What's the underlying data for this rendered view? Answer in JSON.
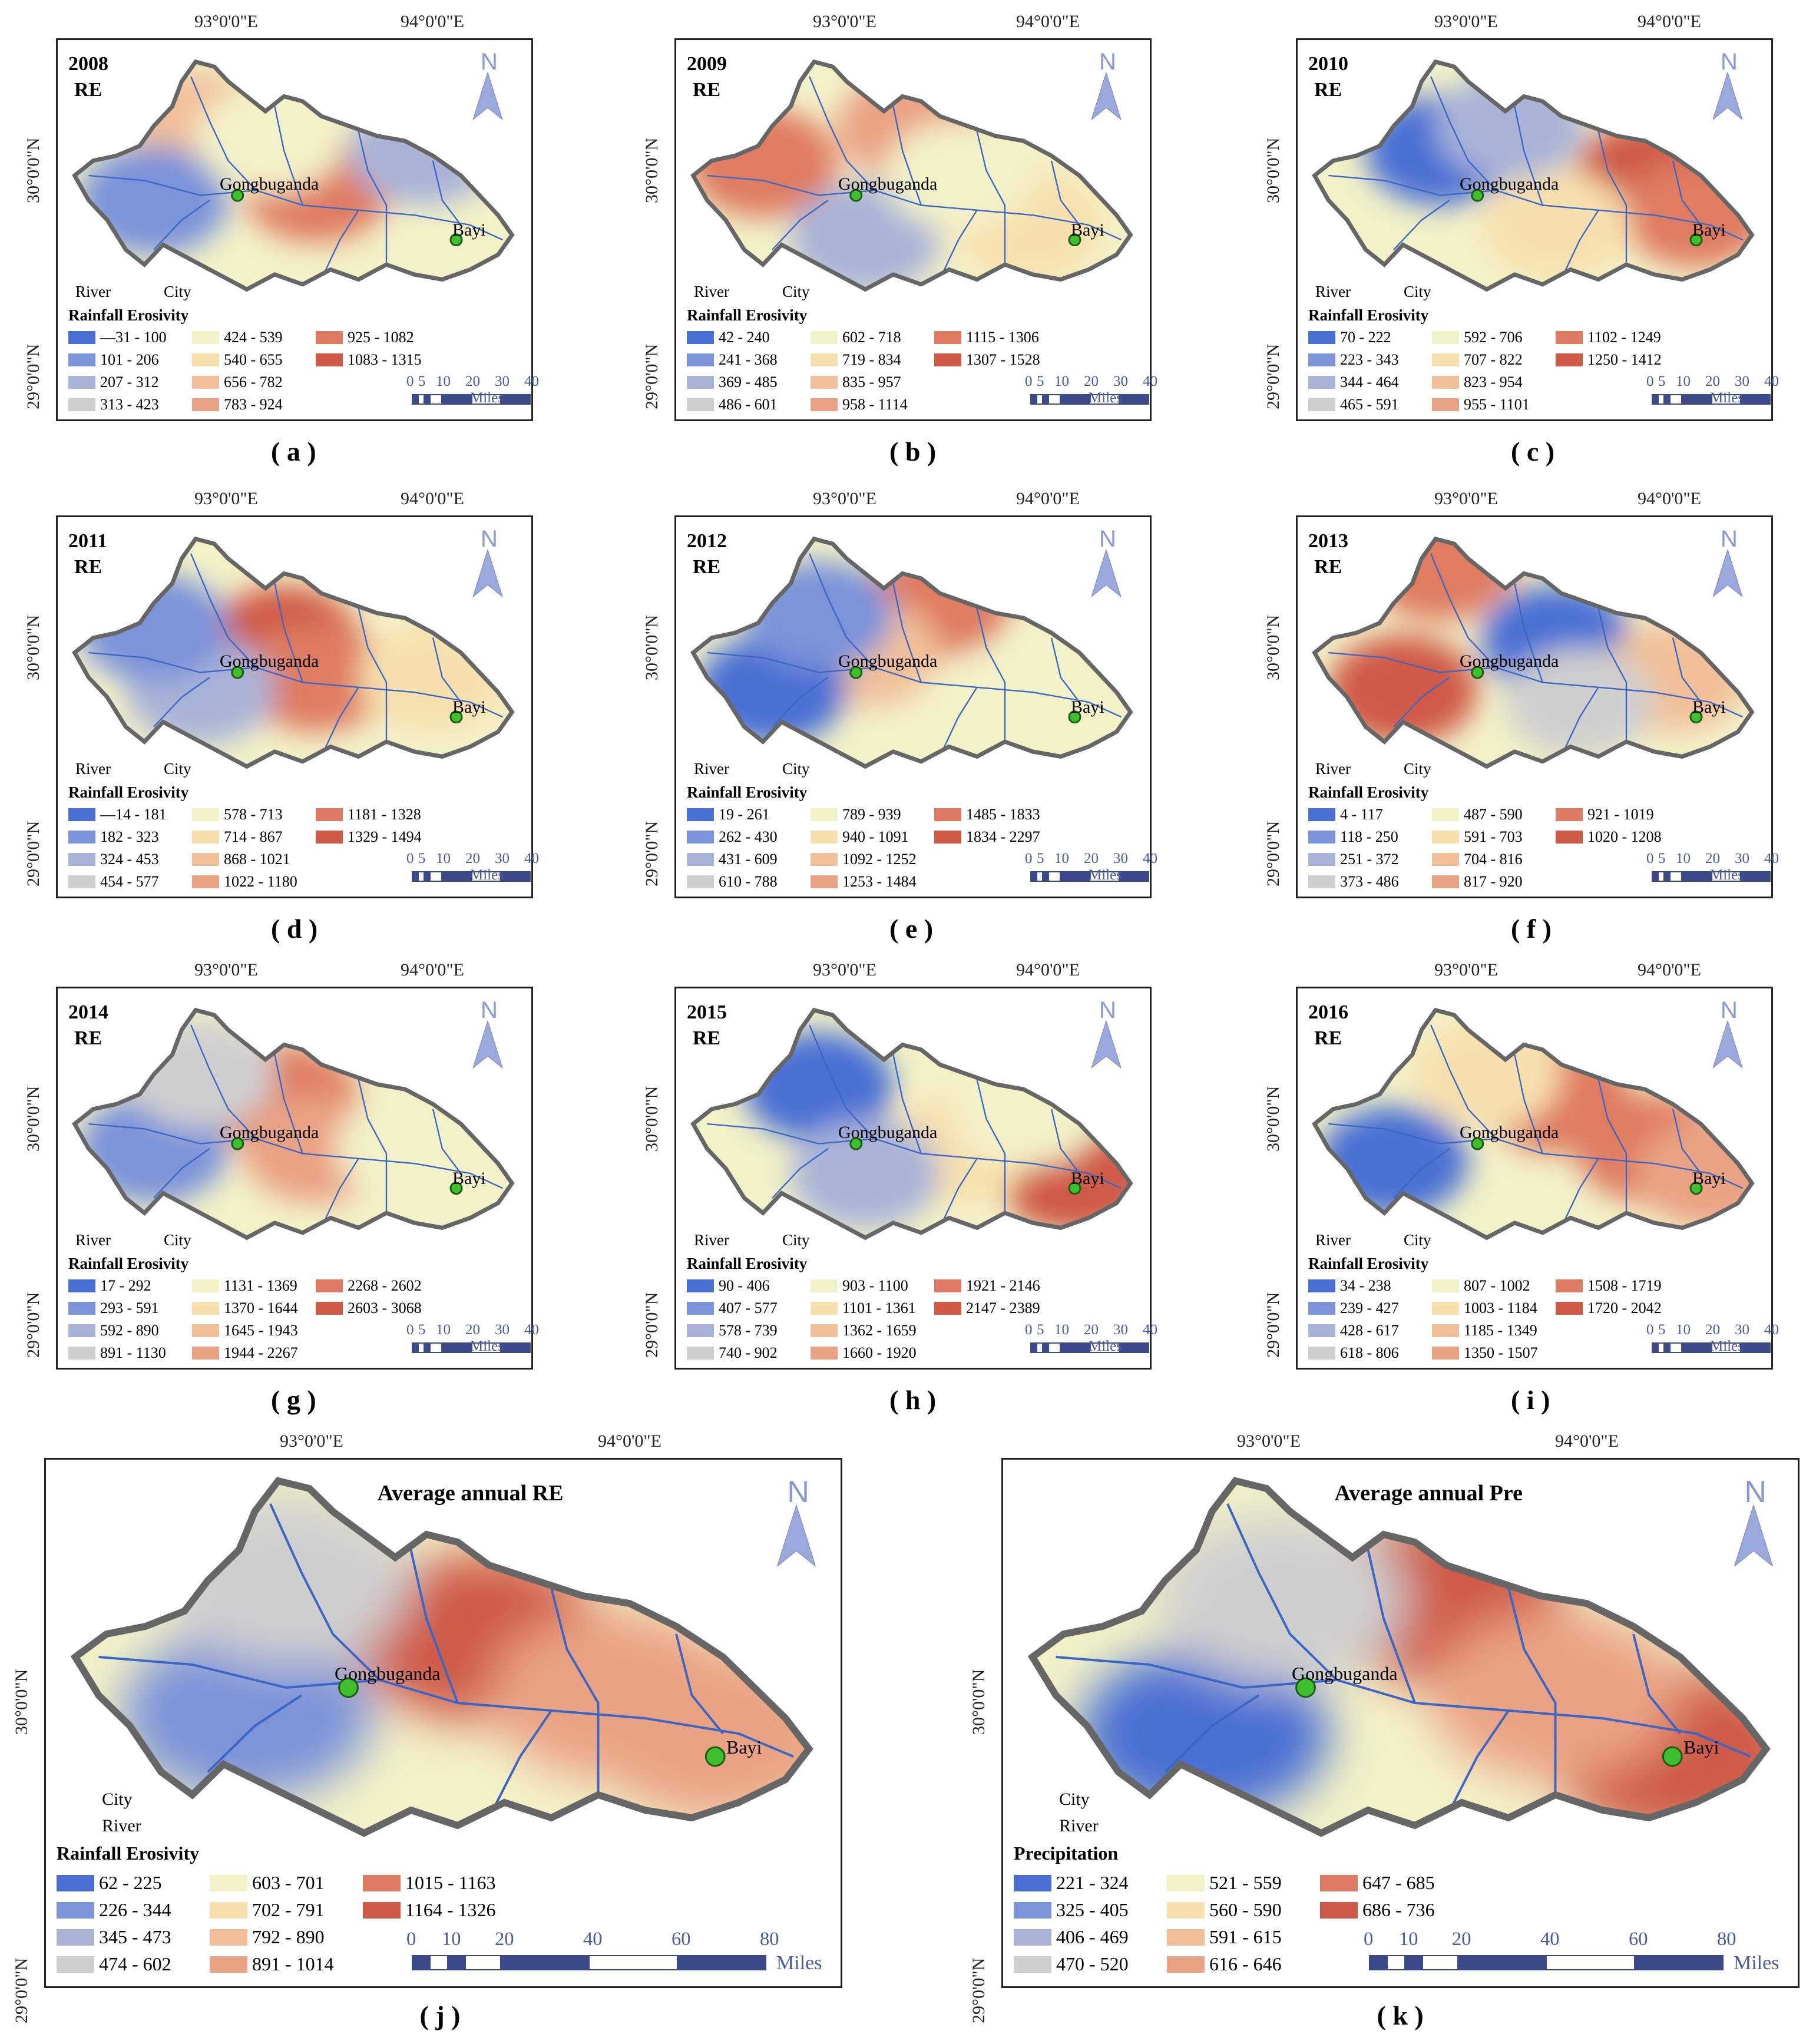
{
  "coords": {
    "lon1": "93°0'0\"E",
    "lon2": "94°0'0\"E",
    "lat1": "30°0'0\"N",
    "lat2": "29°0'0\"N"
  },
  "common": {
    "river": "River",
    "city": "City",
    "rainfall_erosivity": "Rainfall Erosivity",
    "precipitation": "Precipitation",
    "miles": "Miles",
    "north": "N",
    "re": "RE",
    "cities": {
      "gongbuganda": "Gongbuganda",
      "bayi": "Bayi"
    }
  },
  "colors": [
    "#4a6fd4",
    "#7b93d9",
    "#a9b3d8",
    "#cfcfcf",
    "#f3f1c7",
    "#f7e0ae",
    "#f1c09a",
    "#eaa284",
    "#df7b62",
    "#cf5a47"
  ],
  "panels": [
    {
      "caption": "( a )",
      "year": "2008",
      "legend": [
        "—31 - 100",
        "101 - 206",
        "207 - 312",
        "313 - 423",
        "424 - 539",
        "540 - 655",
        "656 - 782",
        "783 - 924",
        "925 - 1082",
        "1083 - 1315"
      ],
      "scale": [
        "0",
        "5",
        "10",
        "20",
        "30",
        "40"
      ]
    },
    {
      "caption": "( b )",
      "year": "2009",
      "legend": [
        "42 - 240",
        "241 - 368",
        "369 - 485",
        "486 - 601",
        "602 - 718",
        "719 - 834",
        "835 - 957",
        "958 - 1114",
        "1115 - 1306",
        "1307 - 1528"
      ],
      "scale": [
        "0",
        "5",
        "10",
        "20",
        "30",
        "40"
      ]
    },
    {
      "caption": "( c )",
      "year": "2010",
      "legend": [
        "70 - 222",
        "223 - 343",
        "344 - 464",
        "465 - 591",
        "592 - 706",
        "707 - 822",
        "823 - 954",
        "955 - 1101",
        "1102 - 1249",
        "1250 - 1412"
      ],
      "scale": [
        "0",
        "5",
        "10",
        "20",
        "30",
        "40"
      ]
    },
    {
      "caption": "( d )",
      "year": "2011",
      "legend": [
        "—14 - 181",
        "182 - 323",
        "324 - 453",
        "454 - 577",
        "578 - 713",
        "714 - 867",
        "868 - 1021",
        "1022 - 1180",
        "1181 - 1328",
        "1329 - 1494"
      ],
      "scale": [
        "0",
        "5",
        "10",
        "20",
        "30",
        "40"
      ]
    },
    {
      "caption": "( e )",
      "year": "2012",
      "legend": [
        "19 - 261",
        "262 - 430",
        "431 - 609",
        "610 - 788",
        "789 - 939",
        "940 - 1091",
        "1092 - 1252",
        "1253 - 1484",
        "1485 - 1833",
        "1834 - 2297"
      ],
      "scale": [
        "0",
        "5",
        "10",
        "20",
        "30",
        "40"
      ]
    },
    {
      "caption": "( f )",
      "year": "2013",
      "legend": [
        "4 - 117",
        "118 - 250",
        "251 - 372",
        "373 - 486",
        "487 - 590",
        "591 - 703",
        "704 - 816",
        "817 - 920",
        "921 - 1019",
        "1020 - 1208"
      ],
      "scale": [
        "0",
        "5",
        "10",
        "20",
        "30",
        "40"
      ]
    },
    {
      "caption": "( g )",
      "year": "2014",
      "legend": [
        "17 - 292",
        "293 - 591",
        "592 - 890",
        "891 - 1130",
        "1131 - 1369",
        "1370 - 1644",
        "1645 - 1943",
        "1944 - 2267",
        "2268 - 2602",
        "2603 - 3068"
      ],
      "scale": [
        "0",
        "5",
        "10",
        "20",
        "30",
        "40"
      ]
    },
    {
      "caption": "( h )",
      "year": "2015",
      "legend": [
        "90 - 406",
        "407 - 577",
        "578 - 739",
        "740 - 902",
        "903 - 1100",
        "1101 - 1361",
        "1362 - 1659",
        "1660 - 1920",
        "1921 - 2146",
        "2147 - 2389"
      ],
      "scale": [
        "0",
        "5",
        "10",
        "20",
        "30",
        "40"
      ]
    },
    {
      "caption": "( i )",
      "year": "2016",
      "legend": [
        "34 - 238",
        "239 - 427",
        "428 - 617",
        "618 - 806",
        "807 - 1002",
        "1003 - 1184",
        "1185 - 1349",
        "1350 - 1507",
        "1508 - 1719",
        "1720 - 2042"
      ],
      "scale": [
        "0",
        "5",
        "10",
        "20",
        "30",
        "40"
      ]
    }
  ],
  "big": [
    {
      "caption": "( j )",
      "title": "Average annual RE",
      "legend_title": "Rainfall Erosivity",
      "legend": [
        "62 - 225",
        "226 - 344",
        "345 - 473",
        "474 - 602",
        "603 - 701",
        "702 - 791",
        "792 - 890",
        "891 - 1014",
        "1015 - 1163",
        "1164 - 1326"
      ],
      "scale": [
        "0",
        "10",
        "20",
        "40",
        "60",
        "80"
      ]
    },
    {
      "caption": "( k )",
      "title": "Average annual Pre",
      "legend_title": "Precipitation",
      "legend": [
        "221 - 324",
        "325 - 405",
        "406 - 469",
        "470 - 520",
        "521 - 559",
        "560 - 590",
        "591 - 615",
        "616 - 646",
        "647 - 685",
        "686 - 736"
      ],
      "scale": [
        "0",
        "10",
        "20",
        "40",
        "60",
        "80"
      ]
    }
  ]
}
